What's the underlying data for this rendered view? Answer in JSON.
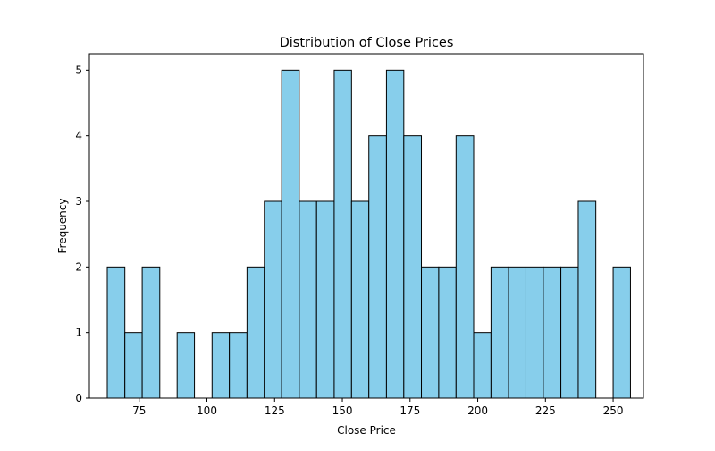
{
  "chart_data": {
    "type": "bar",
    "title": "Distribution of Close Prices",
    "xlabel": "Close Price",
    "ylabel": "Frequency",
    "xlim": [
      56.6,
      261.2
    ],
    "ylim": [
      0,
      5.25
    ],
    "x_ticks": [
      75,
      100,
      125,
      150,
      175,
      200,
      225,
      250
    ],
    "y_ticks": [
      0,
      1,
      2,
      3,
      4,
      5
    ],
    "grid": false,
    "legend": "none",
    "bar_color": "#87CEEB",
    "edge_color": "#000000",
    "bins": [
      {
        "start": 63.2,
        "end": 69.7,
        "count": 2
      },
      {
        "start": 69.7,
        "end": 76.1,
        "count": 1
      },
      {
        "start": 76.1,
        "end": 82.6,
        "count": 2
      },
      {
        "start": 82.6,
        "end": 89.0,
        "count": 0
      },
      {
        "start": 89.0,
        "end": 95.4,
        "count": 1
      },
      {
        "start": 95.4,
        "end": 101.9,
        "count": 0
      },
      {
        "start": 101.9,
        "end": 108.3,
        "count": 1
      },
      {
        "start": 108.3,
        "end": 114.8,
        "count": 1
      },
      {
        "start": 114.8,
        "end": 121.2,
        "count": 2
      },
      {
        "start": 121.2,
        "end": 127.6,
        "count": 3
      },
      {
        "start": 127.6,
        "end": 134.1,
        "count": 5
      },
      {
        "start": 134.1,
        "end": 140.5,
        "count": 3
      },
      {
        "start": 140.5,
        "end": 147.0,
        "count": 3
      },
      {
        "start": 147.0,
        "end": 153.4,
        "count": 5
      },
      {
        "start": 153.4,
        "end": 159.8,
        "count": 3
      },
      {
        "start": 159.8,
        "end": 166.3,
        "count": 4
      },
      {
        "start": 166.3,
        "end": 172.7,
        "count": 5
      },
      {
        "start": 172.7,
        "end": 179.2,
        "count": 4
      },
      {
        "start": 179.2,
        "end": 185.6,
        "count": 2
      },
      {
        "start": 185.6,
        "end": 192.0,
        "count": 2
      },
      {
        "start": 192.0,
        "end": 198.5,
        "count": 4
      },
      {
        "start": 198.5,
        "end": 204.9,
        "count": 1
      },
      {
        "start": 204.9,
        "end": 211.4,
        "count": 2
      },
      {
        "start": 211.4,
        "end": 217.8,
        "count": 2
      },
      {
        "start": 217.8,
        "end": 224.2,
        "count": 2
      },
      {
        "start": 224.2,
        "end": 230.7,
        "count": 2
      },
      {
        "start": 230.7,
        "end": 237.1,
        "count": 2
      },
      {
        "start": 237.1,
        "end": 243.6,
        "count": 3
      },
      {
        "start": 243.6,
        "end": 250.0,
        "count": 0
      },
      {
        "start": 250.0,
        "end": 256.4,
        "count": 2
      }
    ]
  }
}
